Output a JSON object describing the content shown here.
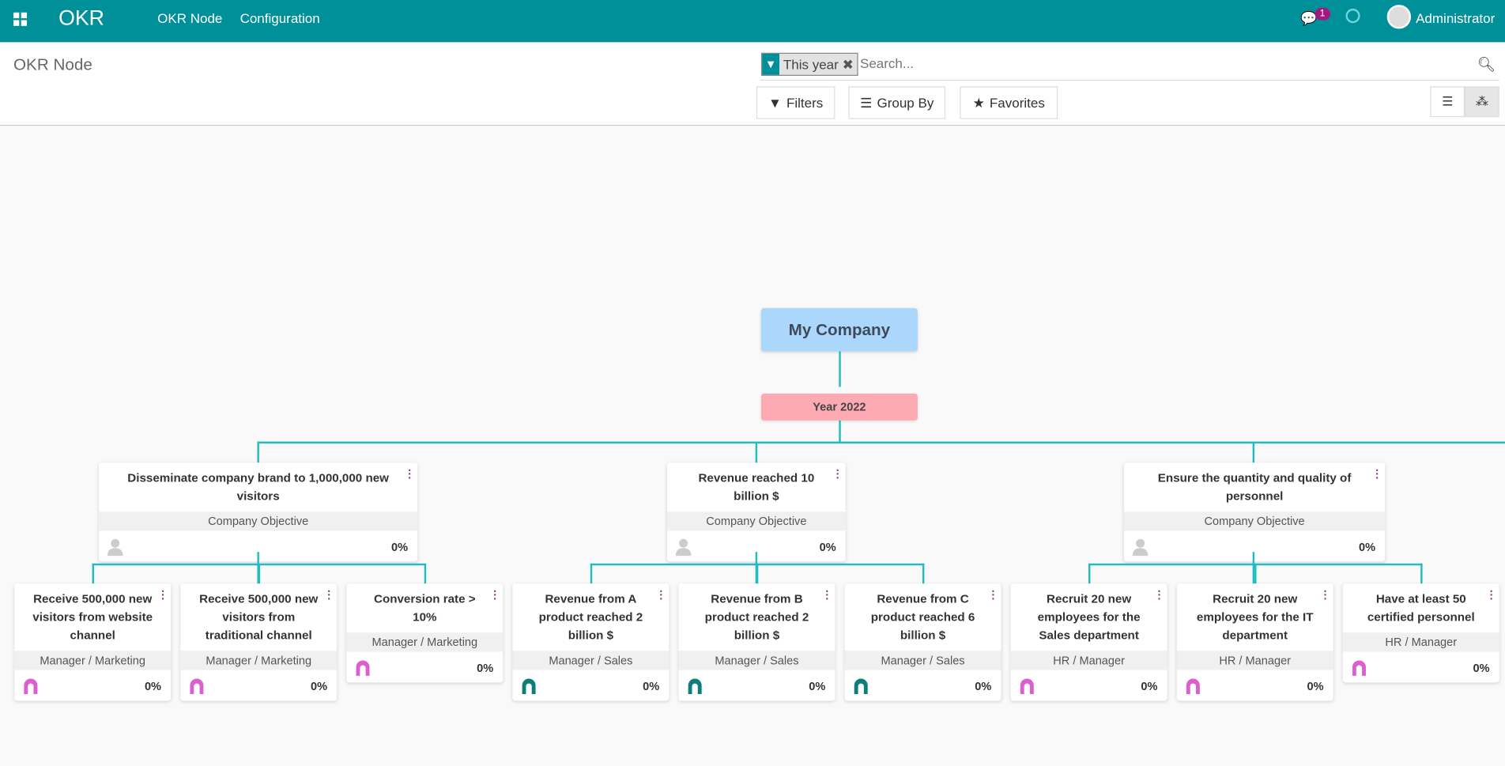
{
  "navbar": {
    "app_name": "OKR",
    "menu": [
      "OKR Node",
      "Configuration"
    ],
    "message_count": "1",
    "user": "Administrator",
    "color": "#00909a"
  },
  "control_panel": {
    "title": "OKR Node",
    "facet": "This year",
    "search_placeholder": "Search...",
    "filters": "Filters",
    "group_by": "Group By",
    "favorites": "Favorites",
    "active_view": "hierarchy"
  },
  "tree": {
    "root": "My Company",
    "period": "Year 2022",
    "objectives": [
      {
        "title": "Disseminate company brand to 1,000,000 new visitors",
        "role": "Company Objective",
        "progress": "0%",
        "children": [
          {
            "title": "Receive 500,000 new visitors from website channel",
            "role": "Manager / Marketing",
            "progress": "0%",
            "avatar": "pink"
          },
          {
            "title": "Receive 500,000 new visitors from traditional channel",
            "role": "Manager / Marketing",
            "progress": "0%",
            "avatar": "pink"
          },
          {
            "title": "Conversion rate > 10%",
            "role": "Manager / Marketing",
            "progress": "0%",
            "avatar": "pink"
          }
        ]
      },
      {
        "title": "Revenue reached 10 billion $",
        "role": "Company Objective",
        "progress": "0%",
        "children": [
          {
            "title": "Revenue from A product reached 2 billion $",
            "role": "Manager / Sales",
            "progress": "0%",
            "avatar": "teal"
          },
          {
            "title": "Revenue from B product reached 2 billion $",
            "role": "Manager / Sales",
            "progress": "0%",
            "avatar": "teal"
          },
          {
            "title": "Revenue from C product reached 6 billion $",
            "role": "Manager / Sales",
            "progress": "0%",
            "avatar": "teal"
          }
        ]
      },
      {
        "title": "Ensure the quantity and quality of personnel",
        "role": "Company Objective",
        "progress": "0%",
        "children": [
          {
            "title": "Recruit 20 new employees for the Sales department",
            "role": "HR / Manager",
            "progress": "0%",
            "avatar": "pink"
          },
          {
            "title": "Recruit 20 new employees for the IT department",
            "role": "HR / Manager",
            "progress": "0%",
            "avatar": "pink"
          },
          {
            "title": "Have at least 50 certified personnel",
            "role": "HR / Manager",
            "progress": "0%",
            "avatar": "pink"
          }
        ]
      }
    ]
  },
  "colors": {
    "line": "#1fbcc3",
    "root": "#acd7fc",
    "period": "#fdaab3",
    "avatar_pink": "#dd5fcf",
    "avatar_teal": "#0d7f78",
    "avatar_none": "#cccccc"
  }
}
